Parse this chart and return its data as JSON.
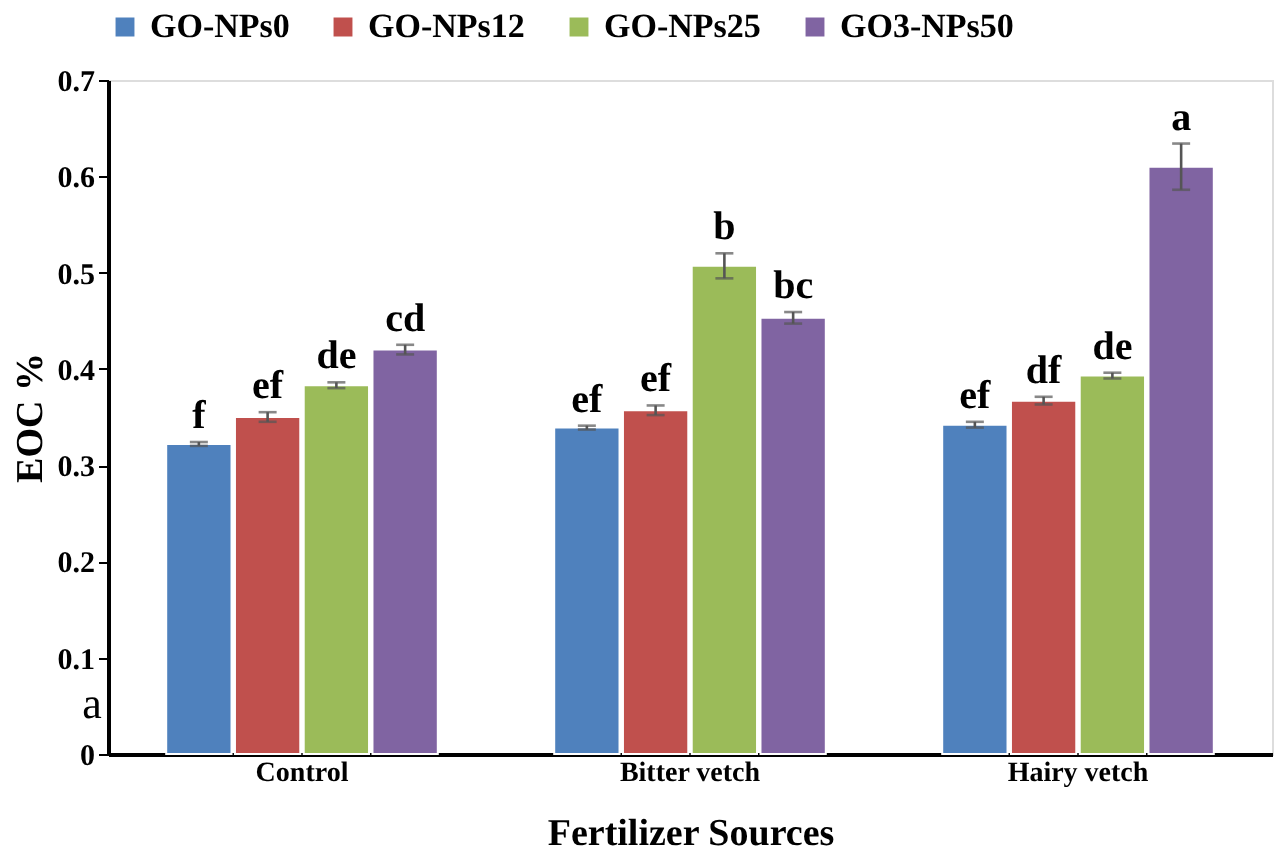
{
  "chart_data": {
    "type": "bar",
    "xlabel": "Fertilizer Sources",
    "ylabel": "EOC %",
    "categories": [
      "Control",
      "Bitter vetch",
      "Hairy vetch"
    ],
    "series": [
      {
        "name": "GO-NPs0",
        "color": "#4f81bd",
        "values": [
          0.322,
          0.339,
          0.342
        ],
        "errors": [
          0.002,
          0.002,
          0.003
        ]
      },
      {
        "name": "GO-NPs12",
        "color": "#c0504d",
        "values": [
          0.35,
          0.357,
          0.367
        ],
        "errors": [
          0.005,
          0.005,
          0.004
        ]
      },
      {
        "name": "GO-NPs25",
        "color": "#9bbb59",
        "values": [
          0.383,
          0.507,
          0.393
        ],
        "errors": [
          0.003,
          0.013,
          0.003
        ]
      },
      {
        "name": "GO3-NPs50",
        "color": "#8064a2",
        "values": [
          0.42,
          0.453,
          0.61
        ],
        "errors": [
          0.005,
          0.006,
          0.024
        ]
      }
    ],
    "ylim": [
      0,
      0.7
    ],
    "yticks": [
      0,
      0.1,
      0.2,
      0.3,
      0.4,
      0.5,
      0.6,
      0.7
    ],
    "grid": false,
    "legend": "top",
    "annotations": [
      "f",
      "ef",
      "de",
      "cd",
      "ef",
      "ef",
      "b",
      "bc",
      "ef",
      "df",
      "de",
      "a",
      "a"
    ]
  }
}
